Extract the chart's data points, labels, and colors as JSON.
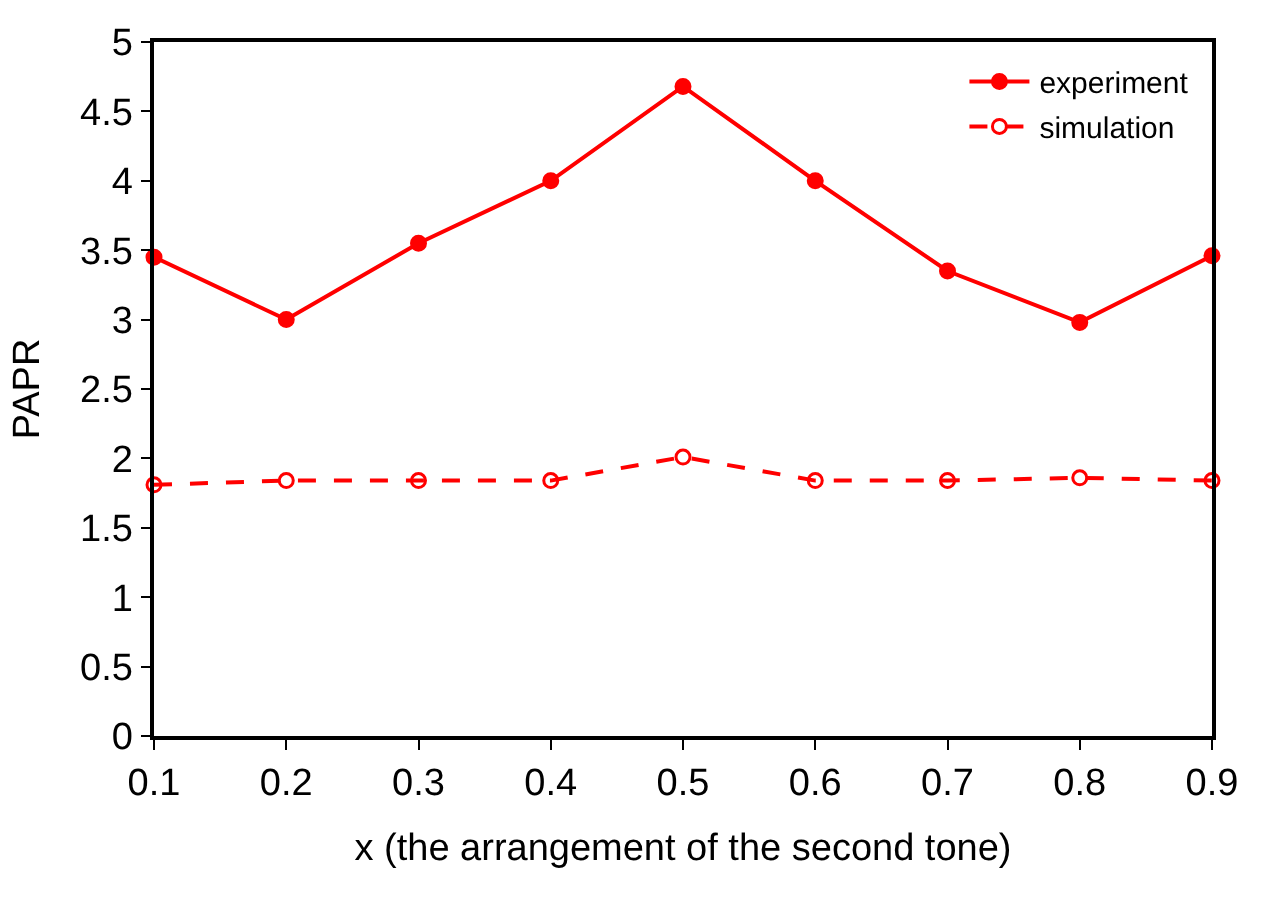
{
  "chart_data": {
    "type": "line",
    "xlabel": "x (the arrangement of the second tone)",
    "ylabel": "PAPR",
    "x": [
      0.1,
      0.2,
      0.3,
      0.4,
      0.5,
      0.6,
      0.7,
      0.8,
      0.9
    ],
    "series": [
      {
        "name": "experiment",
        "color": "#ff0000",
        "values": [
          3.45,
          3.0,
          3.55,
          4.0,
          4.68,
          4.0,
          3.35,
          2.98,
          3.46
        ],
        "line_style": "solid",
        "marker": "circle"
      },
      {
        "name": "simulation",
        "color": "#ff0000",
        "values": [
          1.81,
          1.84,
          1.84,
          1.84,
          2.01,
          1.84,
          1.84,
          1.86,
          1.84
        ],
        "line_style": "dashed",
        "marker": "circle"
      }
    ],
    "xlim": [
      0.1,
      0.9
    ],
    "xticks": [
      0.1,
      0.2,
      0.3,
      0.4,
      0.5,
      0.6,
      0.7,
      0.8,
      0.9
    ],
    "ylim": [
      0,
      5
    ],
    "yticks": [
      0,
      0.5,
      1,
      1.5,
      2,
      2.5,
      3,
      3.5,
      4,
      4.5,
      5
    ],
    "grid": false,
    "legend": "top right"
  }
}
